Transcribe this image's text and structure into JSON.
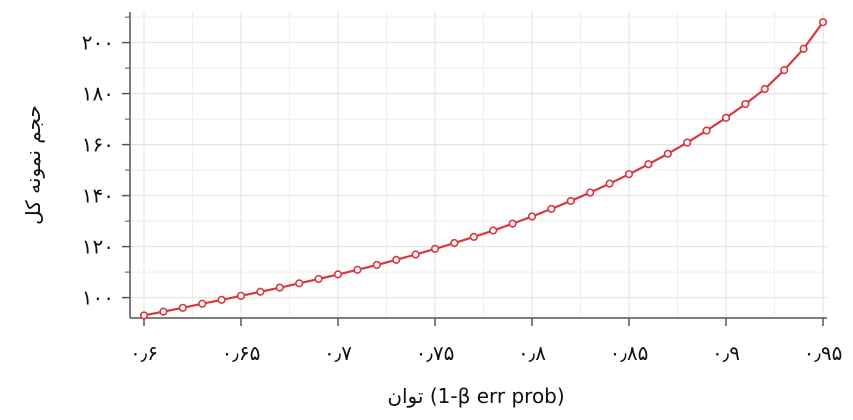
{
  "chart_data": {
    "type": "line",
    "xlabel": "توان (1-β err prob)",
    "ylabel": "حجم نمونه کل",
    "xlim": [
      0.6,
      0.95
    ],
    "ylim": [
      92,
      212
    ],
    "grid": true,
    "x_ticks": [
      0.6,
      0.65,
      0.7,
      0.75,
      0.8,
      0.85,
      0.9,
      0.95
    ],
    "x_tick_labels": [
      "۰٫۶",
      "۰٫۶۵",
      "۰٫۷",
      "۰٫۷۵",
      "۰٫۸",
      "۰٫۸۵",
      "۰٫۹",
      "۰٫۹۵"
    ],
    "y_ticks": [
      100,
      120,
      140,
      160,
      180,
      200
    ],
    "y_tick_labels": [
      "۱۰۰",
      "۱۲۰",
      "۱۴۰",
      "۱۶۰",
      "۱۸۰",
      "۲۰۰"
    ],
    "colors": {
      "line": "#d9373f",
      "grid": "#e2e2e2",
      "axis": "#555555"
    },
    "series": [
      {
        "x": [
          0.6,
          0.61,
          0.62,
          0.63,
          0.64,
          0.65,
          0.66,
          0.67,
          0.68,
          0.69,
          0.7,
          0.71,
          0.72,
          0.73,
          0.74,
          0.75,
          0.76,
          0.77,
          0.78,
          0.79,
          0.8,
          0.81,
          0.82,
          0.83,
          0.84,
          0.85,
          0.86,
          0.87,
          0.88,
          0.89,
          0.9,
          0.91,
          0.92,
          0.93,
          0.94,
          0.95
        ],
        "values": [
          93,
          94.5,
          96,
          97.6,
          99.1,
          100.7,
          102.3,
          103.9,
          105.6,
          107.3,
          109.1,
          110.9,
          112.8,
          114.8,
          116.9,
          119.1,
          121.4,
          123.8,
          126.3,
          129,
          131.8,
          134.8,
          137.9,
          141.2,
          144.7,
          148.4,
          152.3,
          156.4,
          160.8,
          165.5,
          170.5,
          175.9,
          181.8,
          189.2,
          197.6,
          208
        ]
      }
    ]
  }
}
